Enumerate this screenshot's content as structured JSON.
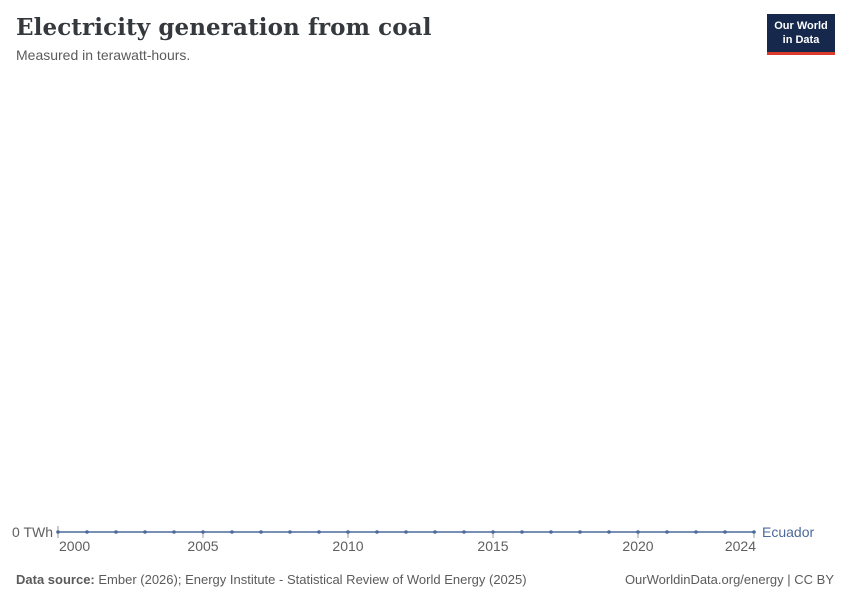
{
  "header": {
    "title": "Electricity generation from coal",
    "subtitle": "Measured in terawatt-hours.",
    "logo": {
      "line1": "Our World",
      "line2": "in Data"
    }
  },
  "footer": {
    "source_label": "Data source:",
    "source_text": " Ember (2026); Energy Institute - Statistical Review of World Energy (2025)",
    "rights": "OurWorldinData.org/energy | CC BY"
  },
  "chart_data": {
    "type": "line",
    "title": "Electricity generation from coal",
    "subtitle": "Measured in terawatt-hours.",
    "x": [
      2000,
      2001,
      2002,
      2003,
      2004,
      2005,
      2006,
      2007,
      2008,
      2009,
      2010,
      2011,
      2012,
      2013,
      2014,
      2015,
      2016,
      2017,
      2018,
      2019,
      2020,
      2021,
      2022,
      2023,
      2024
    ],
    "series": [
      {
        "name": "Ecuador",
        "values": [
          0,
          0,
          0,
          0,
          0,
          0,
          0,
          0,
          0,
          0,
          0,
          0,
          0,
          0,
          0,
          0,
          0,
          0,
          0,
          0,
          0,
          0,
          0,
          0,
          0
        ],
        "color": "#4c6a9c"
      }
    ],
    "xticks": [
      2000,
      2005,
      2010,
      2015,
      2020,
      2024
    ],
    "yticks": [
      {
        "value": 0,
        "label": "0 TWh"
      }
    ],
    "ylim": [
      0,
      1
    ],
    "xlabel": "",
    "ylabel": "",
    "grid": false,
    "markers": true,
    "legend_position": "end-of-line",
    "colors": {
      "line": "#4c6a9c",
      "entity_label": "#4c6a9c",
      "tick_label": "#5f5f5f",
      "tick_mark": "#999999"
    }
  }
}
